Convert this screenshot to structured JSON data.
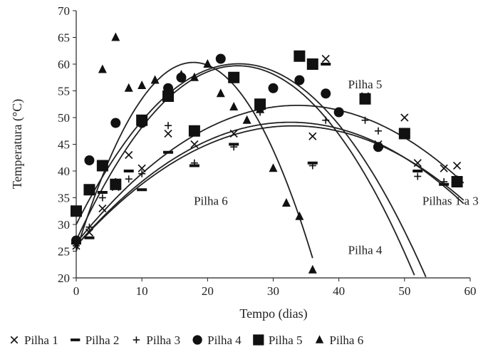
{
  "chart_data": {
    "type": "scatter",
    "xlabel": "Tempo (dias)",
    "ylabel": "Temperatura (°C)",
    "xlim": [
      0,
      60
    ],
    "ylim": [
      20,
      70
    ],
    "xticks": [
      "0",
      "10",
      "20",
      "30",
      "40",
      "50",
      "60"
    ],
    "yticks": [
      "20",
      "25",
      "30",
      "35",
      "40",
      "45",
      "50",
      "55",
      "60",
      "65",
      "70"
    ],
    "grid": false,
    "legend_position": "bottom",
    "series": [
      {
        "name": "Pilha 1",
        "marker": "x",
        "points": [
          [
            0,
            26
          ],
          [
            2,
            28.5
          ],
          [
            4,
            33
          ],
          [
            6,
            37
          ],
          [
            8,
            43
          ],
          [
            10,
            40.5
          ],
          [
            14,
            47
          ],
          [
            18,
            45
          ],
          [
            24,
            47
          ],
          [
            28,
            52
          ],
          [
            36,
            46.5
          ],
          [
            38,
            61
          ],
          [
            44,
            54
          ],
          [
            46,
            45
          ],
          [
            50,
            50
          ],
          [
            52,
            41.5
          ],
          [
            56,
            40.5
          ],
          [
            58,
            41
          ]
        ]
      },
      {
        "name": "Pilha 2",
        "marker": "dash",
        "points": [
          [
            0,
            26.5
          ],
          [
            2,
            27.5
          ],
          [
            4,
            36
          ],
          [
            6,
            37.5
          ],
          [
            8,
            40
          ],
          [
            10,
            36.5
          ],
          [
            14,
            43.5
          ],
          [
            18,
            41
          ],
          [
            24,
            45
          ],
          [
            28,
            52
          ],
          [
            36,
            41.5
          ],
          [
            38,
            60
          ],
          [
            44,
            53.5
          ],
          [
            46,
            44.5
          ],
          [
            50,
            47
          ],
          [
            52,
            40
          ],
          [
            56,
            37.5
          ],
          [
            58,
            38
          ]
        ]
      },
      {
        "name": "Pilha 3",
        "marker": "plus",
        "points": [
          [
            0,
            26
          ],
          [
            2,
            29.5
          ],
          [
            4,
            35
          ],
          [
            6,
            38
          ],
          [
            8,
            38.5
          ],
          [
            10,
            39.5
          ],
          [
            14,
            48.5
          ],
          [
            18,
            41.5
          ],
          [
            24,
            44.5
          ],
          [
            28,
            51
          ],
          [
            36,
            41
          ],
          [
            38,
            49.5
          ],
          [
            44,
            49.5
          ],
          [
            46,
            47.5
          ],
          [
            50,
            47
          ],
          [
            52,
            39
          ],
          [
            56,
            38
          ],
          [
            58,
            38.5
          ]
        ]
      },
      {
        "name": "Pilha 4",
        "marker": "circle",
        "points": [
          [
            0,
            27
          ],
          [
            2,
            42
          ],
          [
            4,
            41
          ],
          [
            6,
            49
          ],
          [
            10,
            49
          ],
          [
            14,
            55.5
          ],
          [
            16,
            57.5
          ],
          [
            22,
            61
          ],
          [
            24,
            57.5
          ],
          [
            30,
            55.5
          ],
          [
            34,
            57
          ],
          [
            38,
            54.5
          ],
          [
            40,
            51
          ],
          [
            46,
            44.5
          ]
        ]
      },
      {
        "name": "Pilha 5",
        "marker": "square",
        "points": [
          [
            0,
            32.5
          ],
          [
            2,
            36.5
          ],
          [
            4,
            41
          ],
          [
            6,
            37.5
          ],
          [
            10,
            49.5
          ],
          [
            14,
            54
          ],
          [
            18,
            47.5
          ],
          [
            24,
            57.5
          ],
          [
            28,
            52.5
          ],
          [
            34,
            61.5
          ],
          [
            36,
            60
          ],
          [
            44,
            53.5
          ],
          [
            50,
            47
          ],
          [
            58,
            38
          ]
        ]
      },
      {
        "name": "Pilha 6",
        "marker": "triangle",
        "points": [
          [
            4,
            59
          ],
          [
            6,
            65
          ],
          [
            8,
            55.5
          ],
          [
            10,
            56
          ],
          [
            12,
            57
          ],
          [
            16,
            58
          ],
          [
            18,
            57.5
          ],
          [
            20,
            60
          ],
          [
            22,
            54.5
          ],
          [
            24,
            52
          ],
          [
            26,
            49.5
          ],
          [
            28,
            51.5
          ],
          [
            30,
            40.5
          ],
          [
            32,
            34
          ],
          [
            34,
            31.5
          ],
          [
            36,
            21.5
          ]
        ]
      }
    ],
    "fit_curves": [
      {
        "name": "Pilha 6",
        "coef": [
          25,
          3.96,
          -0.111
        ],
        "x_range": [
          0,
          36.2
        ]
      },
      {
        "name": "Pilha 4",
        "coef": [
          27,
          2.66,
          -0.0541
        ],
        "x_range": [
          0,
          56
        ]
      },
      {
        "name": "Pilha 5",
        "coef": [
          30,
          2.43,
          -0.0491
        ],
        "x_range": [
          0,
          59
        ]
      },
      {
        "name": "Pilhas 1 a 3",
        "coef": [
          26.5,
          1.53,
          -0.0227
        ],
        "x_range": [
          0,
          59
        ]
      },
      {
        "name": "Pilhas 1 a 3",
        "coef": [
          26,
          1.42,
          -0.0218
        ],
        "x_range": [
          0,
          59
        ]
      },
      {
        "name": "Pilhas 1 a 3",
        "coef": [
          26,
          1.36,
          -0.0206
        ],
        "x_range": [
          0,
          59
        ]
      }
    ],
    "annotations": [
      {
        "text": "Pilha 5",
        "x": 44,
        "y": 55.5
      },
      {
        "text": "Pilha 6",
        "x": 20.5,
        "y": 33.7
      },
      {
        "text": "Pilhas 1 a 3",
        "x": 57,
        "y": 33.7
      },
      {
        "text": "Pilha 4",
        "x": 44,
        "y": 24.5
      }
    ]
  }
}
